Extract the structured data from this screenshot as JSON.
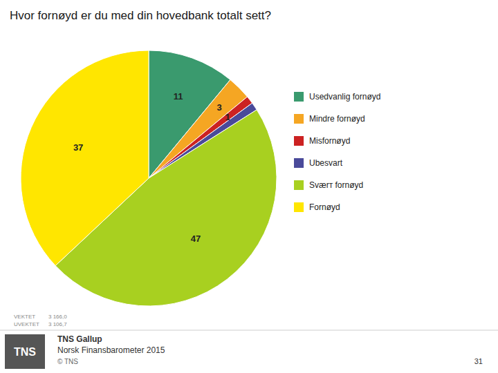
{
  "chart_data": {
    "type": "pie",
    "title": "Hvor fornøyd er du med din hovedbank totalt sett?",
    "categories": [
      "Usedvanlig fornøyd",
      "Mindre fornøyd",
      "Misfornøyd",
      "Ubesvart",
      "Sværт fornøyd",
      "Fornøyd"
    ],
    "values": [
      11,
      3,
      1,
      1,
      47,
      37
    ],
    "value_labels": [
      "11",
      "3",
      "1",
      null,
      "47",
      "37"
    ],
    "data_labels": true,
    "colors": [
      "#3A9A6E",
      "#F5A623",
      "#CC2222",
      "#4A4A9A",
      "#A8D020",
      "#FFE600"
    ],
    "legend": "right",
    "annotations": [
      "TNS",
      "TNS Gallup",
      "Norsk Finansbarometer 2015",
      "© TNS",
      "31",
      "VEKTET",
      "UVEKTET",
      "3 166,0",
      "3 106,7"
    ]
  }
}
